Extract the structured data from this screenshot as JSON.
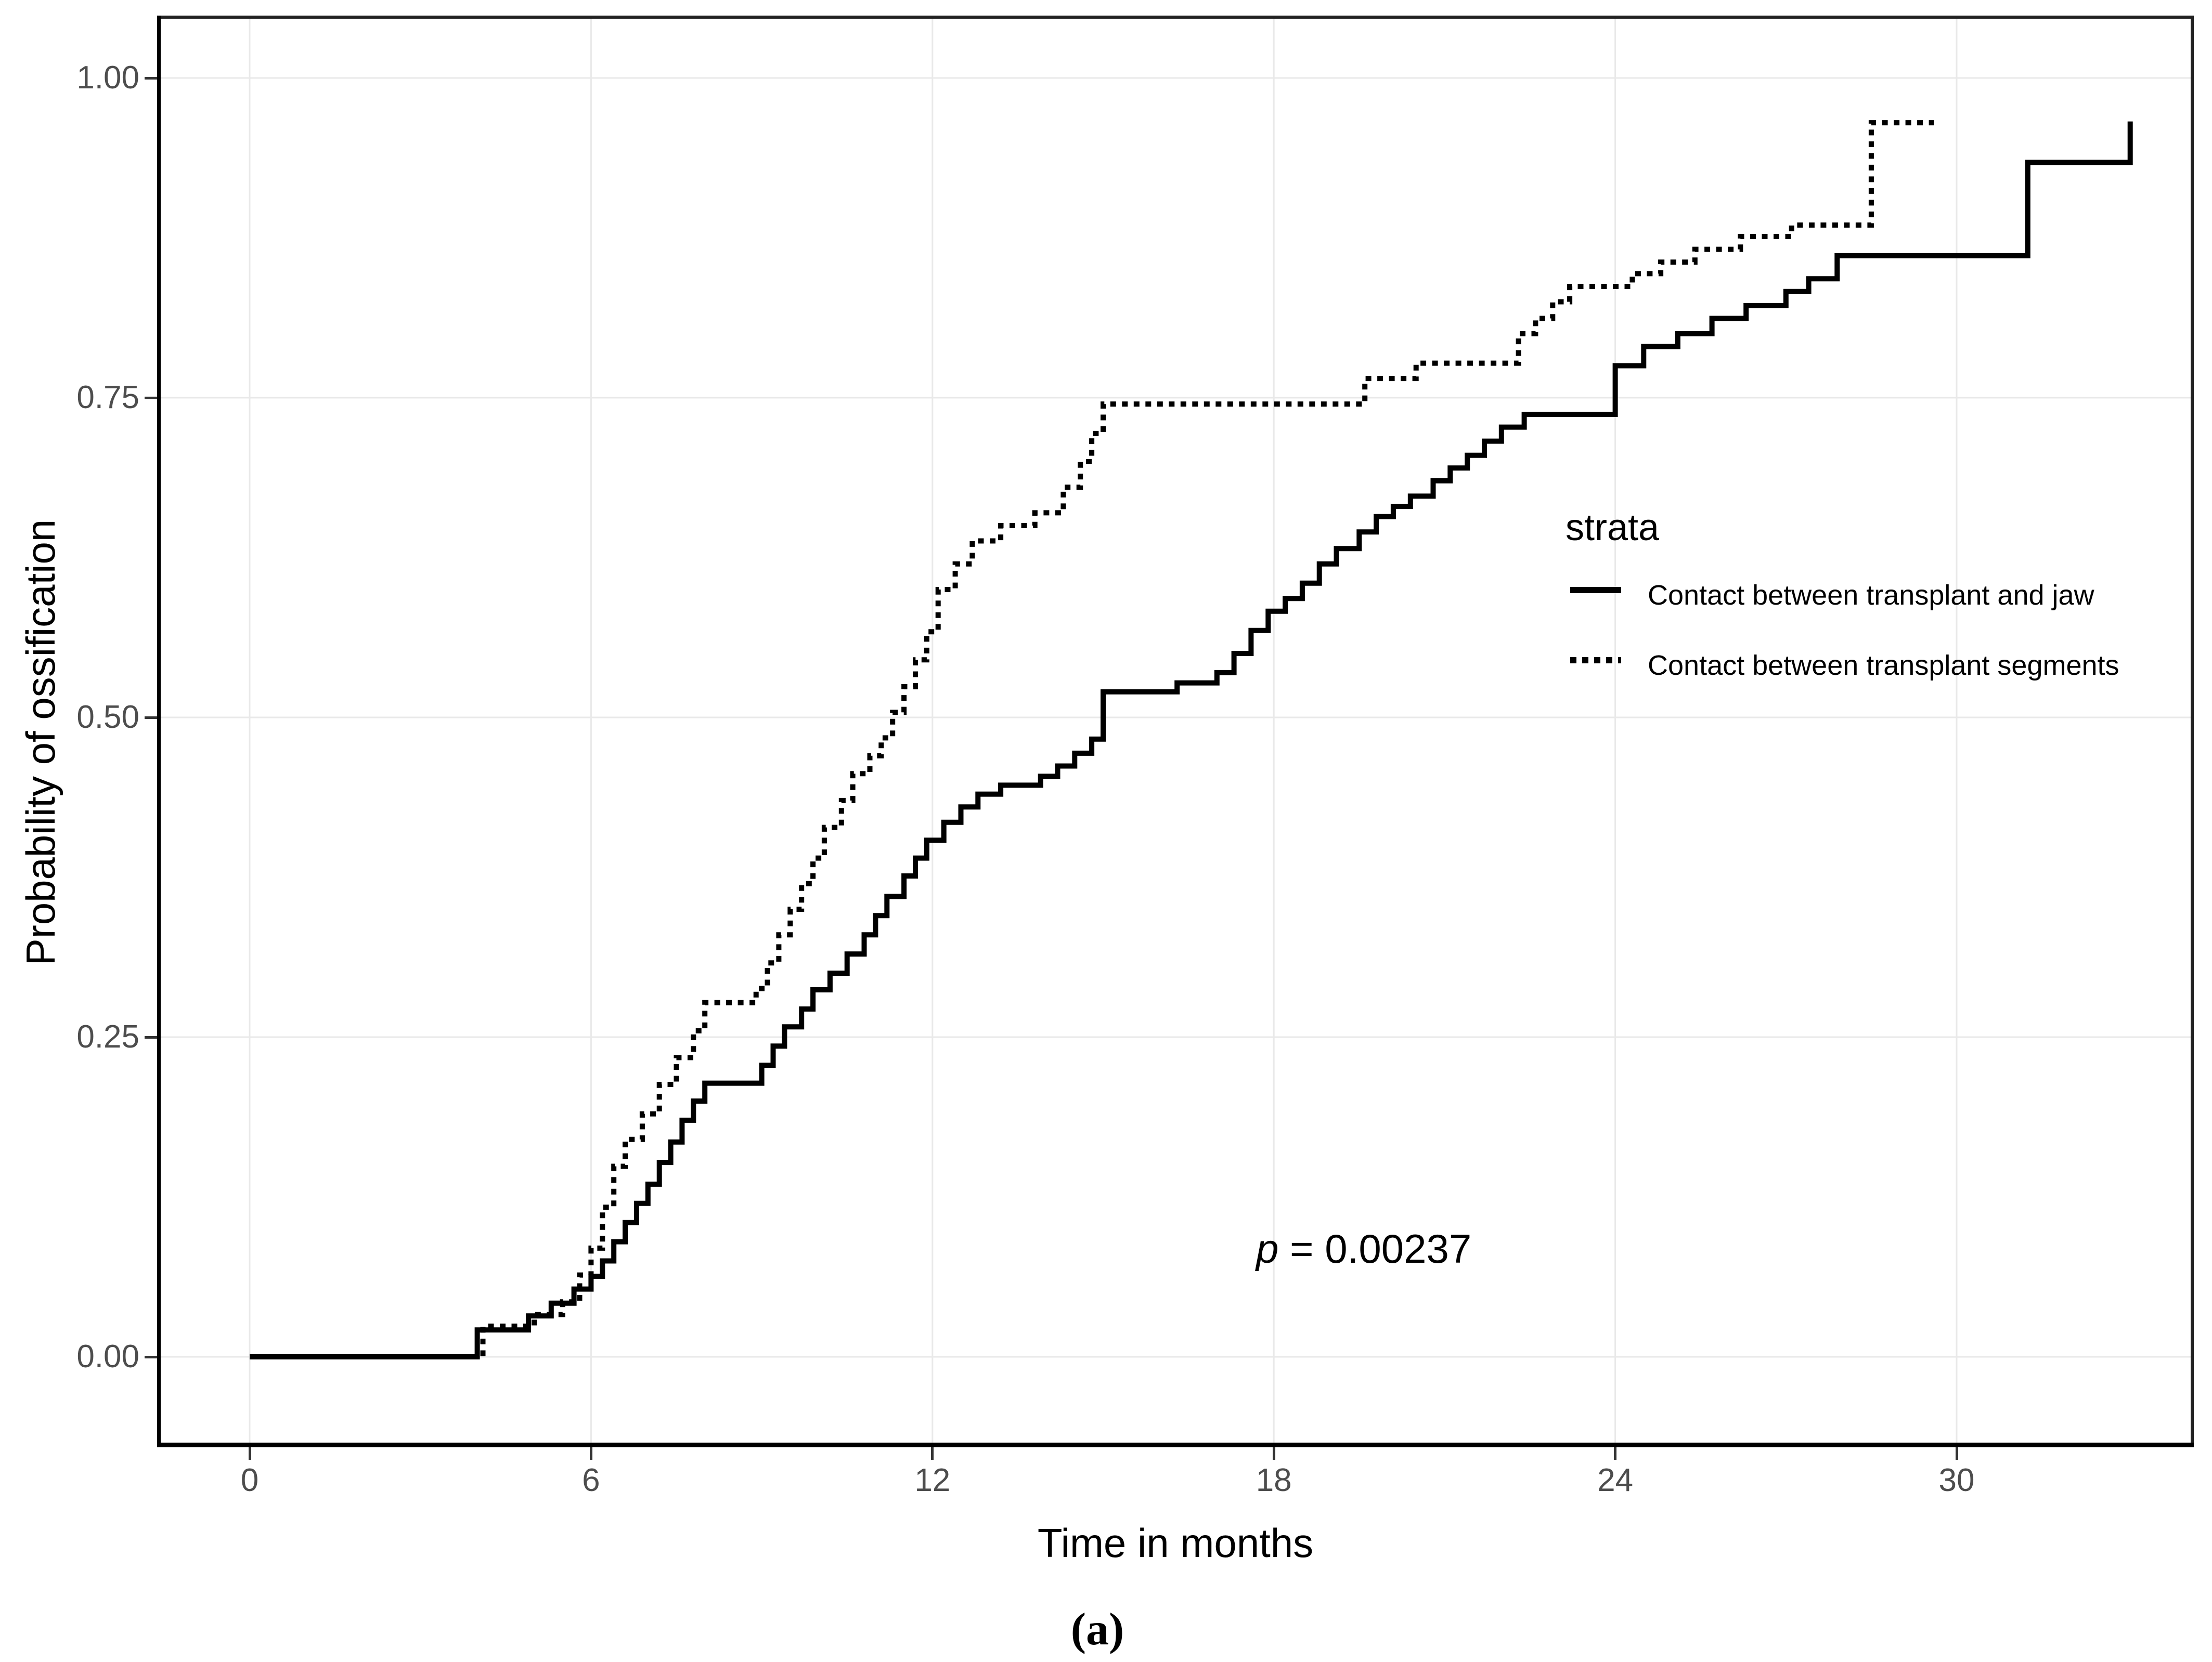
{
  "figure": {
    "background": "#ffffff",
    "caption": "(a)"
  },
  "chart_data": {
    "type": "line",
    "subtype": "kaplan-meier-cumulative-incidence-step",
    "title": "",
    "xlabel": "Time in months",
    "ylabel": "Probability of ossification",
    "xlim": [
      -1.6,
      34.2
    ],
    "ylim": [
      -0.07,
      1.05
    ],
    "grid": true,
    "x_ticks": [
      {
        "value": 0,
        "label": "0"
      },
      {
        "value": 6,
        "label": "6"
      },
      {
        "value": 12,
        "label": "12"
      },
      {
        "value": 18,
        "label": "18"
      },
      {
        "value": 24,
        "label": "24"
      },
      {
        "value": 30,
        "label": "30"
      }
    ],
    "y_ticks": [
      {
        "value": 0.0,
        "label": "0.00"
      },
      {
        "value": 0.25,
        "label": "0.25"
      },
      {
        "value": 0.5,
        "label": "0.50"
      },
      {
        "value": 0.75,
        "label": "0.75"
      },
      {
        "value": 1.0,
        "label": "1.00"
      }
    ],
    "legend": {
      "title": "strata",
      "position": "inside-right"
    },
    "annotation": {
      "var": "p",
      "rest": " = 0.00237"
    },
    "colors": {
      "curve": "#000000",
      "tick_text": "#4d4d4d",
      "axis_title": "#000000",
      "grid": "#e9e9e9",
      "panel_border": "#222222"
    },
    "series": [
      {
        "name": "Contact between transplant and jaw",
        "linetype": "solid",
        "color": "#000000",
        "step_points": [
          [
            0,
            0
          ],
          [
            4,
            0.021
          ],
          [
            4.9,
            0.032
          ],
          [
            5.3,
            0.042
          ],
          [
            5.7,
            0.053
          ],
          [
            6,
            0.063
          ],
          [
            6.2,
            0.075
          ],
          [
            6.4,
            0.09
          ],
          [
            6.6,
            0.105
          ],
          [
            6.8,
            0.12
          ],
          [
            7,
            0.135
          ],
          [
            7.2,
            0.152
          ],
          [
            7.4,
            0.168
          ],
          [
            7.6,
            0.185
          ],
          [
            7.8,
            0.2
          ],
          [
            8,
            0.214
          ],
          [
            9,
            0.228
          ],
          [
            9.2,
            0.243
          ],
          [
            9.4,
            0.258
          ],
          [
            9.7,
            0.272
          ],
          [
            9.9,
            0.287
          ],
          [
            10.2,
            0.3
          ],
          [
            10.5,
            0.315
          ],
          [
            10.8,
            0.33
          ],
          [
            11,
            0.345
          ],
          [
            11.2,
            0.36
          ],
          [
            11.5,
            0.376
          ],
          [
            11.7,
            0.39
          ],
          [
            11.9,
            0.404
          ],
          [
            12.2,
            0.418
          ],
          [
            12.5,
            0.43
          ],
          [
            12.8,
            0.44
          ],
          [
            13.2,
            0.447
          ],
          [
            13.9,
            0.454
          ],
          [
            14.2,
            0.462
          ],
          [
            14.5,
            0.472
          ],
          [
            14.8,
            0.483
          ],
          [
            15,
            0.52
          ],
          [
            16.3,
            0.527
          ],
          [
            17,
            0.535
          ],
          [
            17.3,
            0.55
          ],
          [
            17.6,
            0.568
          ],
          [
            17.9,
            0.583
          ],
          [
            18.2,
            0.593
          ],
          [
            18.5,
            0.605
          ],
          [
            18.8,
            0.62
          ],
          [
            19.1,
            0.632
          ],
          [
            19.5,
            0.645
          ],
          [
            19.8,
            0.657
          ],
          [
            20.1,
            0.665
          ],
          [
            20.4,
            0.673
          ],
          [
            20.8,
            0.685
          ],
          [
            21.1,
            0.695
          ],
          [
            21.4,
            0.705
          ],
          [
            21.7,
            0.716
          ],
          [
            22,
            0.727
          ],
          [
            22.4,
            0.737
          ],
          [
            24,
            0.775
          ],
          [
            24.5,
            0.79
          ],
          [
            25.1,
            0.8
          ],
          [
            25.7,
            0.812
          ],
          [
            26.3,
            0.822
          ],
          [
            27,
            0.833
          ],
          [
            27.4,
            0.843
          ],
          [
            27.9,
            0.861
          ],
          [
            31.25,
            0.934
          ],
          [
            33.05,
            0.966
          ]
        ]
      },
      {
        "name": "Contact between transplant segments",
        "linetype": "dotted",
        "color": "#000000",
        "step_points": [
          [
            0,
            0
          ],
          [
            4.1,
            0.024
          ],
          [
            5,
            0.033
          ],
          [
            5.5,
            0.043
          ],
          [
            5.8,
            0.064
          ],
          [
            6,
            0.085
          ],
          [
            6.2,
            0.117
          ],
          [
            6.4,
            0.149
          ],
          [
            6.6,
            0.17
          ],
          [
            6.9,
            0.19
          ],
          [
            7.2,
            0.213
          ],
          [
            7.5,
            0.234
          ],
          [
            7.8,
            0.255
          ],
          [
            8,
            0.277
          ],
          [
            8.9,
            0.288
          ],
          [
            9.1,
            0.308
          ],
          [
            9.3,
            0.33
          ],
          [
            9.5,
            0.35
          ],
          [
            9.7,
            0.37
          ],
          [
            9.9,
            0.39
          ],
          [
            10.1,
            0.414
          ],
          [
            10.4,
            0.435
          ],
          [
            10.6,
            0.456
          ],
          [
            10.9,
            0.47
          ],
          [
            11.1,
            0.484
          ],
          [
            11.3,
            0.504
          ],
          [
            11.5,
            0.524
          ],
          [
            11.7,
            0.545
          ],
          [
            11.9,
            0.567
          ],
          [
            12.1,
            0.6
          ],
          [
            12.4,
            0.62
          ],
          [
            12.7,
            0.638
          ],
          [
            13.2,
            0.65
          ],
          [
            13.8,
            0.66
          ],
          [
            14.3,
            0.68
          ],
          [
            14.6,
            0.7
          ],
          [
            14.8,
            0.722
          ],
          [
            15,
            0.745
          ],
          [
            19.6,
            0.765
          ],
          [
            20.5,
            0.777
          ],
          [
            22.3,
            0.8
          ],
          [
            22.6,
            0.812
          ],
          [
            22.9,
            0.825
          ],
          [
            23.2,
            0.837
          ],
          [
            24.3,
            0.847
          ],
          [
            24.8,
            0.856
          ],
          [
            25.4,
            0.866
          ],
          [
            26.2,
            0.876
          ],
          [
            27.1,
            0.885
          ],
          [
            28.5,
            0.965
          ],
          [
            29.6,
            0.965
          ]
        ]
      }
    ]
  }
}
